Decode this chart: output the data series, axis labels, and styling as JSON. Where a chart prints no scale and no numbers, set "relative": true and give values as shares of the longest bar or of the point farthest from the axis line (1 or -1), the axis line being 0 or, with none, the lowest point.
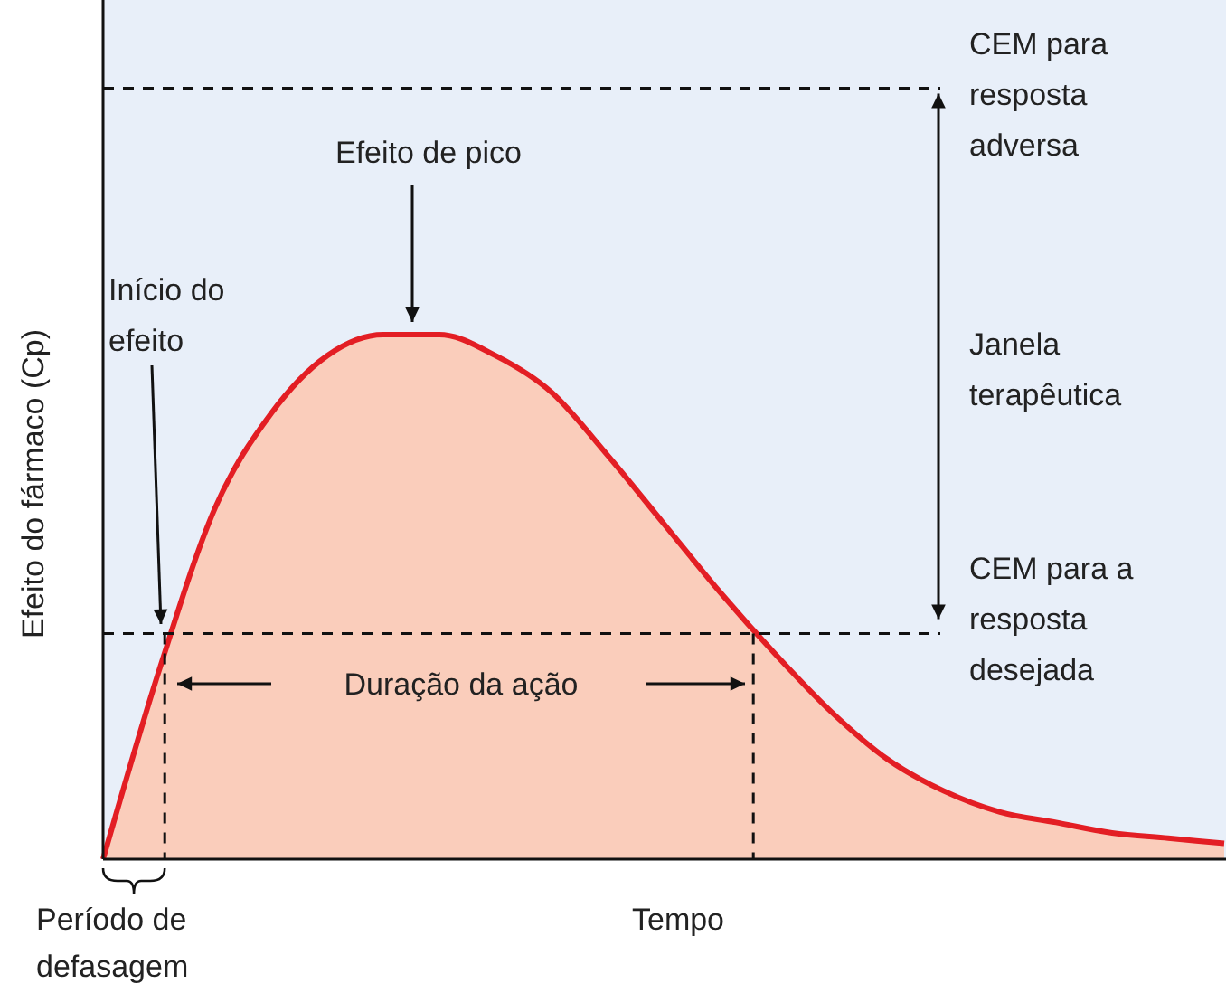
{
  "chart_data": {
    "type": "area",
    "relative": true,
    "xlabel": "Tempo",
    "ylabel": "Efeito do fármaco (Cp)",
    "categories": [
      null,
      null,
      null,
      null,
      null,
      null,
      null,
      null,
      null,
      null,
      null,
      null,
      null,
      null,
      null,
      null,
      null,
      null,
      null,
      null,
      null
    ],
    "series": [
      {
        "color": "#e31e24",
        "values": [
          0,
          0.36,
          0.67,
          0.85,
          0.96,
          1,
          1,
          0.96,
          0.89,
          0.77,
          0.64,
          0.51,
          0.39,
          0.28,
          0.19,
          0.13,
          0.09,
          0.07,
          0.05,
          0.04,
          0.03
        ]
      }
    ],
    "ref_lines": [
      {
        "axis": "y",
        "value": 1.47,
        "label": "CEM para resposta adversa",
        "line_style": "dashed"
      },
      {
        "axis": "y",
        "value": 0.43,
        "label": "CEM para a resposta desejada",
        "line_style": "dashed"
      }
    ],
    "annotations": [
      "Efeito de pico",
      "Início do efeito",
      "Duração da ação",
      "Período de defasagem",
      "Janela terapêutica"
    ]
  }
}
